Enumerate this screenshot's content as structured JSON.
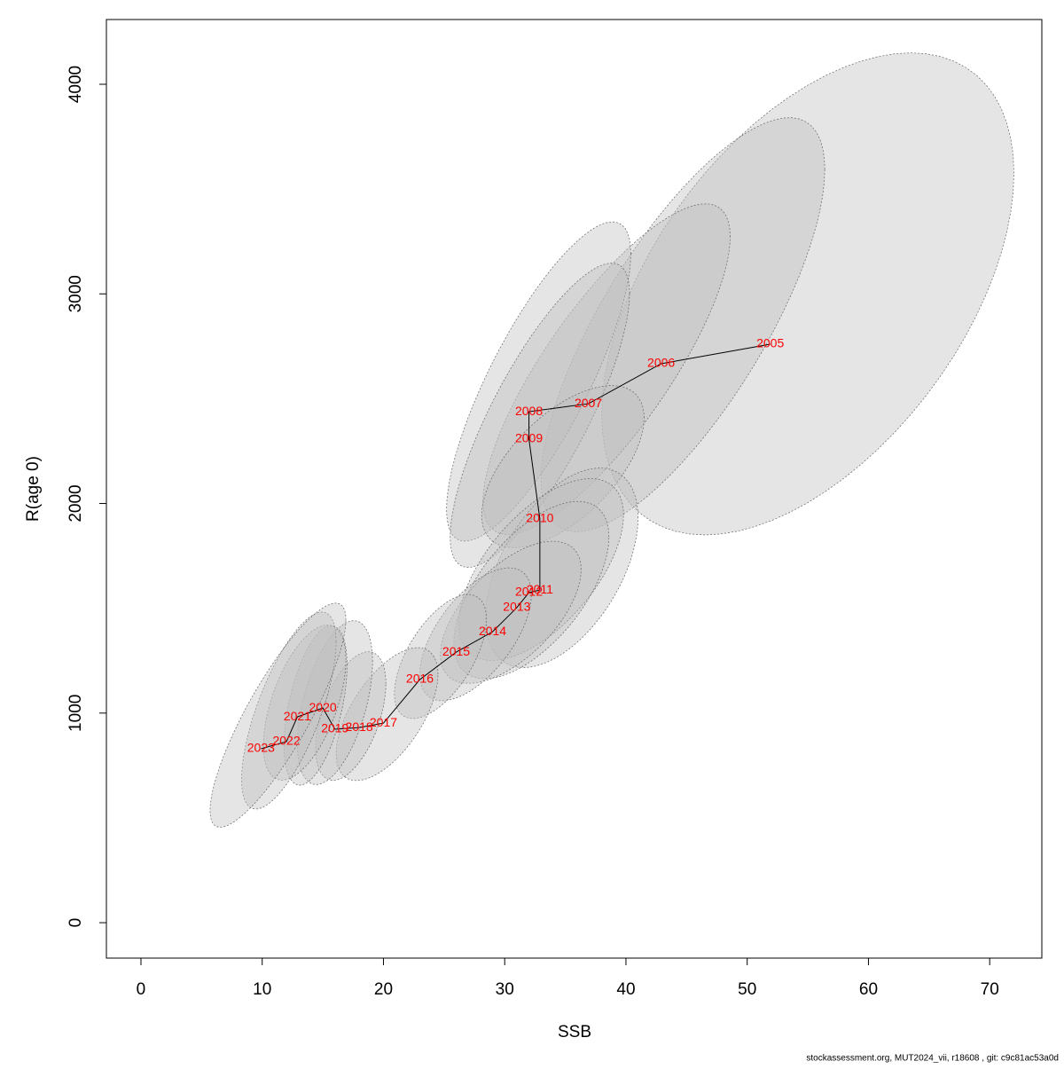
{
  "chart_data": {
    "type": "scatter",
    "xlabel": "SSB",
    "ylabel": "R(age 0)",
    "footer": "stockassessment.org, MUT2024_vii, r18608 , git: c9c81ac53a0d",
    "labels": [
      "2005",
      "2006",
      "2007",
      "2008",
      "2009",
      "2010",
      "2011",
      "2012",
      "2013",
      "2014",
      "2015",
      "2016",
      "2017",
      "2018",
      "2019",
      "2020",
      "2021",
      "2022",
      "2023"
    ],
    "x": [
      51.9,
      42.9,
      36.9,
      32.0,
      32.0,
      32.9,
      32.9,
      32.0,
      31.0,
      29.0,
      26.0,
      23.0,
      20.0,
      18.0,
      16.0,
      15.0,
      12.9,
      12.0,
      9.9
    ],
    "y": [
      2760,
      2667,
      2476,
      2438,
      2307,
      1926,
      1587,
      1575,
      1503,
      1388,
      1291,
      1160,
      952,
      931,
      923,
      1024,
      982,
      864,
      830
    ],
    "label_color": "#ff0000",
    "line_color": "#000000",
    "ellipse_color": "#bebebe",
    "ellipses": [
      {
        "cx": 55,
        "cy": 3000,
        "sx": 17,
        "sy": 1150,
        "rho": 0.5
      },
      {
        "cx": 44.7,
        "cy": 2853,
        "sx": 11.7,
        "sy": 988,
        "rho": 0.75
      },
      {
        "cx": 38.4,
        "cy": 2641,
        "sx": 10.2,
        "sy": 789,
        "rho": 0.8
      },
      {
        "cx": 32.8,
        "cy": 2582,
        "sx": 7.6,
        "sy": 762,
        "rho": 0.8
      },
      {
        "cx": 32.9,
        "cy": 2421,
        "sx": 7.4,
        "sy": 726,
        "rho": 0.8
      },
      {
        "cx": 34.8,
        "cy": 2176,
        "sx": 6.7,
        "sy": 387,
        "rho": 0.6
      },
      {
        "cx": 34.7,
        "cy": 1693,
        "sx": 6.3,
        "sy": 476,
        "rho": 0.5
      },
      {
        "cx": 33.0,
        "cy": 1685,
        "sx": 6.8,
        "sy": 434,
        "rho": 0.6
      },
      {
        "cx": 32.2,
        "cy": 1587,
        "sx": 6.4,
        "sy": 423,
        "rho": 0.6
      },
      {
        "cx": 30.5,
        "cy": 1481,
        "sx": 5.8,
        "sy": 339,
        "rho": 0.6
      },
      {
        "cx": 27.6,
        "cy": 1376,
        "sx": 4.6,
        "sy": 317,
        "rho": 0.6
      },
      {
        "cx": 24.7,
        "cy": 1270,
        "sx": 3.8,
        "sy": 296,
        "rho": 0.6
      },
      {
        "cx": 20.3,
        "cy": 995,
        "sx": 4.2,
        "sy": 317,
        "rho": 0.6
      },
      {
        "cx": 17.3,
        "cy": 986,
        "sx": 2.9,
        "sy": 307,
        "rho": 0.5
      },
      {
        "cx": 16.0,
        "cy": 1050,
        "sx": 3.1,
        "sy": 391,
        "rho": 0.5
      },
      {
        "cx": 14.4,
        "cy": 1037,
        "sx": 2.6,
        "sy": 381,
        "rho": 0.5
      },
      {
        "cx": 13.5,
        "cy": 1050,
        "sx": 3.4,
        "sy": 370,
        "rho": 0.55
      },
      {
        "cx": 12.2,
        "cy": 1012,
        "sx": 3.9,
        "sy": 470,
        "rho": 0.7
      },
      {
        "cx": 11.3,
        "cy": 990,
        "sx": 5.6,
        "sy": 535,
        "rho": 0.85
      }
    ],
    "xlim": [
      -2.85,
      74.3
    ],
    "ylim": [
      -169,
      4309
    ],
    "xticks": [
      0,
      10,
      20,
      30,
      40,
      50,
      60,
      70
    ],
    "yticks": [
      0,
      1000,
      2000,
      3000,
      4000
    ]
  }
}
